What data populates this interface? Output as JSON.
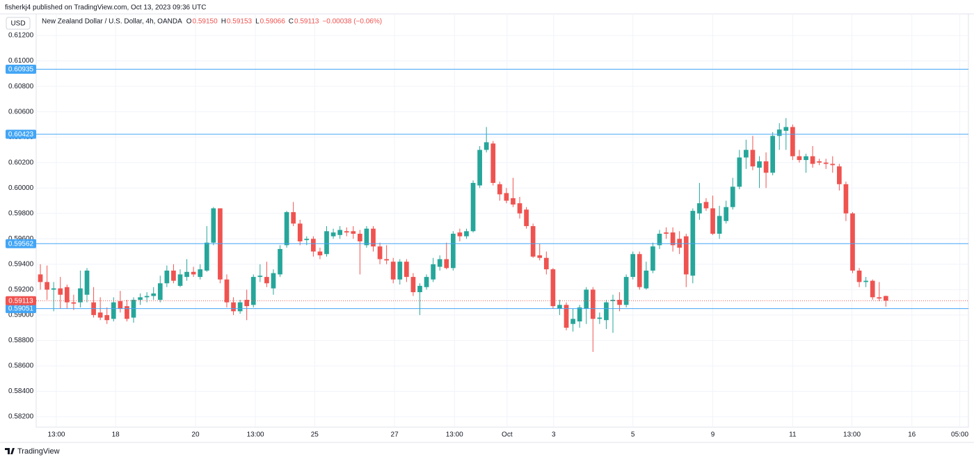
{
  "header": {
    "publisher": "fisherkj4 published on TradingView.com, Oct 13, 2023 09:36 UTC"
  },
  "footer": {
    "brand": "TradingView"
  },
  "chart_data": {
    "type": "candlestick",
    "currency": "USD",
    "symbol": "New Zealand Dollar / U.S. Dollar, 4h, OANDA",
    "ohlc": {
      "o_key": "O",
      "o": "0.59150",
      "h_key": "H",
      "h": "0.59153",
      "l_key": "L",
      "l": "0.59066",
      "c_key": "C",
      "c": "0.59113",
      "change": "−0.00038 (−0.06%)"
    },
    "up_color": "#26a69a",
    "down_color": "#ef5350",
    "ylim": [
      0.58118,
      0.6137
    ],
    "yticks": [
      {
        "value": 0.582,
        "label": "0.58200"
      },
      {
        "value": 0.584,
        "label": "0.58400"
      },
      {
        "value": 0.586,
        "label": "0.58600"
      },
      {
        "value": 0.588,
        "label": "0.58800"
      },
      {
        "value": 0.59,
        "label": "0.59000"
      },
      {
        "value": 0.592,
        "label": "0.59200"
      },
      {
        "value": 0.594,
        "label": "0.59400"
      },
      {
        "value": 0.596,
        "label": "0.59600"
      },
      {
        "value": 0.598,
        "label": "0.59800"
      },
      {
        "value": 0.6,
        "label": "0.60000"
      },
      {
        "value": 0.602,
        "label": "0.60200"
      },
      {
        "value": 0.604,
        "label": "0.60400"
      },
      {
        "value": 0.606,
        "label": "0.60600"
      },
      {
        "value": 0.608,
        "label": "0.60800"
      },
      {
        "value": 0.61,
        "label": "0.61000"
      },
      {
        "value": 0.612,
        "label": "0.61200"
      }
    ],
    "xlim": [
      -0.63,
      139.4
    ],
    "xticks": [
      {
        "value": 2.4,
        "label": "13:00"
      },
      {
        "value": 11.3,
        "label": "18"
      },
      {
        "value": 23.3,
        "label": "20"
      },
      {
        "value": 32.3,
        "label": "13:00"
      },
      {
        "value": 41.2,
        "label": "25"
      },
      {
        "value": 53.2,
        "label": "27"
      },
      {
        "value": 62.2,
        "label": "13:00"
      },
      {
        "value": 70.1,
        "label": "Oct"
      },
      {
        "value": 77.1,
        "label": "3"
      },
      {
        "value": 89.0,
        "label": "5"
      },
      {
        "value": 101.0,
        "label": "9"
      },
      {
        "value": 113.0,
        "label": "11"
      },
      {
        "value": 121.9,
        "label": "13:00"
      },
      {
        "value": 130.9,
        "label": "16"
      },
      {
        "value": 138.1,
        "label": "05:00"
      }
    ],
    "grid": true,
    "levels": {
      "color": "#42a5f5",
      "values": [
        0.60935,
        0.60423,
        0.59562,
        0.59051
      ]
    },
    "last_price": {
      "color": "#ef5350",
      "value": 0.59113
    },
    "candles": [
      {
        "open": 0.5932,
        "high": 0.594,
        "low": 0.592,
        "close": 0.5926
      },
      {
        "open": 0.5926,
        "high": 0.5939,
        "low": 0.5912,
        "close": 0.592
      },
      {
        "open": 0.592,
        "high": 0.5926,
        "low": 0.5903,
        "close": 0.5921
      },
      {
        "open": 0.5921,
        "high": 0.593,
        "low": 0.5905,
        "close": 0.5916
      },
      {
        "open": 0.5922,
        "high": 0.5924,
        "low": 0.5905,
        "close": 0.591
      },
      {
        "open": 0.591,
        "high": 0.5916,
        "low": 0.5904,
        "close": 0.5909
      },
      {
        "open": 0.591,
        "high": 0.5935,
        "low": 0.5906,
        "close": 0.5921
      },
      {
        "open": 0.5916,
        "high": 0.5937,
        "low": 0.591,
        "close": 0.5935
      },
      {
        "open": 0.591,
        "high": 0.5922,
        "low": 0.5898,
        "close": 0.59
      },
      {
        "open": 0.5902,
        "high": 0.5914,
        "low": 0.5896,
        "close": 0.5898
      },
      {
        "open": 0.59,
        "high": 0.5906,
        "low": 0.5893,
        "close": 0.5896
      },
      {
        "open": 0.5897,
        "high": 0.5914,
        "low": 0.5895,
        "close": 0.591
      },
      {
        "open": 0.5911,
        "high": 0.5919,
        "low": 0.5902,
        "close": 0.5905
      },
      {
        "open": 0.5907,
        "high": 0.5912,
        "low": 0.5895,
        "close": 0.5897
      },
      {
        "open": 0.5898,
        "high": 0.5914,
        "low": 0.5894,
        "close": 0.5912
      },
      {
        "open": 0.5912,
        "high": 0.5917,
        "low": 0.5908,
        "close": 0.5914
      },
      {
        "open": 0.5914,
        "high": 0.5918,
        "low": 0.591,
        "close": 0.5915
      },
      {
        "open": 0.5915,
        "high": 0.5922,
        "low": 0.5912,
        "close": 0.5917
      },
      {
        "open": 0.5912,
        "high": 0.5931,
        "low": 0.591,
        "close": 0.5925
      },
      {
        "open": 0.5925,
        "high": 0.5939,
        "low": 0.5922,
        "close": 0.5935
      },
      {
        "open": 0.5935,
        "high": 0.594,
        "low": 0.5925,
        "close": 0.5927
      },
      {
        "open": 0.5923,
        "high": 0.5936,
        "low": 0.5922,
        "close": 0.5932
      },
      {
        "open": 0.593,
        "high": 0.5944,
        "low": 0.5927,
        "close": 0.5934
      },
      {
        "open": 0.5934,
        "high": 0.5938,
        "low": 0.593,
        "close": 0.5932
      },
      {
        "open": 0.593,
        "high": 0.594,
        "low": 0.5928,
        "close": 0.5936
      },
      {
        "open": 0.5935,
        "high": 0.597,
        "low": 0.5934,
        "close": 0.5957
      },
      {
        "open": 0.5957,
        "high": 0.5985,
        "low": 0.5955,
        "close": 0.5984
      },
      {
        "open": 0.5984,
        "high": 0.5984,
        "low": 0.5925,
        "close": 0.5928
      },
      {
        "open": 0.5928,
        "high": 0.5932,
        "low": 0.5906,
        "close": 0.591
      },
      {
        "open": 0.591,
        "high": 0.5914,
        "low": 0.59,
        "close": 0.5903
      },
      {
        "open": 0.5903,
        "high": 0.5912,
        "low": 0.5901,
        "close": 0.591
      },
      {
        "open": 0.5912,
        "high": 0.592,
        "low": 0.5896,
        "close": 0.5907
      },
      {
        "open": 0.5908,
        "high": 0.5932,
        "low": 0.5906,
        "close": 0.593
      },
      {
        "open": 0.593,
        "high": 0.594,
        "low": 0.5926,
        "close": 0.5931
      },
      {
        "open": 0.593,
        "high": 0.5942,
        "low": 0.5922,
        "close": 0.5925
      },
      {
        "open": 0.5921,
        "high": 0.5936,
        "low": 0.5916,
        "close": 0.5933
      },
      {
        "open": 0.5932,
        "high": 0.5955,
        "low": 0.593,
        "close": 0.5952
      },
      {
        "open": 0.5955,
        "high": 0.5982,
        "low": 0.5953,
        "close": 0.5981
      },
      {
        "open": 0.5981,
        "high": 0.5989,
        "low": 0.597,
        "close": 0.5972
      },
      {
        "open": 0.5972,
        "high": 0.5975,
        "low": 0.5955,
        "close": 0.5958
      },
      {
        "open": 0.5959,
        "high": 0.5962,
        "low": 0.5955,
        "close": 0.596
      },
      {
        "open": 0.596,
        "high": 0.5962,
        "low": 0.5946,
        "close": 0.595
      },
      {
        "open": 0.595,
        "high": 0.5953,
        "low": 0.5944,
        "close": 0.5947
      },
      {
        "open": 0.5948,
        "high": 0.597,
        "low": 0.5946,
        "close": 0.5966
      },
      {
        "open": 0.5962,
        "high": 0.5968,
        "low": 0.596,
        "close": 0.5965
      },
      {
        "open": 0.5963,
        "high": 0.597,
        "low": 0.596,
        "close": 0.5967
      },
      {
        "open": 0.5966,
        "high": 0.5969,
        "low": 0.5962,
        "close": 0.5965
      },
      {
        "open": 0.5966,
        "high": 0.597,
        "low": 0.596,
        "close": 0.5964
      },
      {
        "open": 0.5964,
        "high": 0.5967,
        "low": 0.5932,
        "close": 0.5958
      },
      {
        "open": 0.5955,
        "high": 0.597,
        "low": 0.5953,
        "close": 0.5968
      },
      {
        "open": 0.5968,
        "high": 0.597,
        "low": 0.595,
        "close": 0.5954
      },
      {
        "open": 0.5954,
        "high": 0.5957,
        "low": 0.594,
        "close": 0.5944
      },
      {
        "open": 0.5944,
        "high": 0.5955,
        "low": 0.594,
        "close": 0.5943
      },
      {
        "open": 0.5942,
        "high": 0.5945,
        "low": 0.5925,
        "close": 0.5928
      },
      {
        "open": 0.5928,
        "high": 0.5944,
        "low": 0.5924,
        "close": 0.5942
      },
      {
        "open": 0.5942,
        "high": 0.5944,
        "low": 0.5926,
        "close": 0.593
      },
      {
        "open": 0.593,
        "high": 0.5933,
        "low": 0.5915,
        "close": 0.5918
      },
      {
        "open": 0.5918,
        "high": 0.5925,
        "low": 0.59,
        "close": 0.5923
      },
      {
        "open": 0.5922,
        "high": 0.5932,
        "low": 0.592,
        "close": 0.593
      },
      {
        "open": 0.5928,
        "high": 0.5945,
        "low": 0.5926,
        "close": 0.594
      },
      {
        "open": 0.5938,
        "high": 0.5947,
        "low": 0.5935,
        "close": 0.5944
      },
      {
        "open": 0.5944,
        "high": 0.5957,
        "low": 0.5936,
        "close": 0.5937
      },
      {
        "open": 0.5937,
        "high": 0.5966,
        "low": 0.5935,
        "close": 0.5964
      },
      {
        "open": 0.5965,
        "high": 0.5968,
        "low": 0.5958,
        "close": 0.5962
      },
      {
        "open": 0.5962,
        "high": 0.5968,
        "low": 0.596,
        "close": 0.5966
      },
      {
        "open": 0.5966,
        "high": 0.6006,
        "low": 0.5965,
        "close": 0.6004
      },
      {
        "open": 0.6002,
        "high": 0.6033,
        "low": 0.6,
        "close": 0.603
      },
      {
        "open": 0.603,
        "high": 0.6048,
        "low": 0.6028,
        "close": 0.6036
      },
      {
        "open": 0.6035,
        "high": 0.6037,
        "low": 0.6002,
        "close": 0.6004
      },
      {
        "open": 0.6003,
        "high": 0.6005,
        "low": 0.599,
        "close": 0.5995
      },
      {
        "open": 0.5996,
        "high": 0.6,
        "low": 0.5988,
        "close": 0.599
      },
      {
        "open": 0.5992,
        "high": 0.6008,
        "low": 0.5985,
        "close": 0.5987
      },
      {
        "open": 0.5988,
        "high": 0.5993,
        "low": 0.5976,
        "close": 0.598
      },
      {
        "open": 0.5983,
        "high": 0.5985,
        "low": 0.5968,
        "close": 0.597
      },
      {
        "open": 0.597,
        "high": 0.5972,
        "low": 0.5945,
        "close": 0.5946
      },
      {
        "open": 0.5947,
        "high": 0.5956,
        "low": 0.5943,
        "close": 0.5945
      },
      {
        "open": 0.5945,
        "high": 0.595,
        "low": 0.5932,
        "close": 0.5936
      },
      {
        "open": 0.5936,
        "high": 0.5937,
        "low": 0.5905,
        "close": 0.5907
      },
      {
        "open": 0.5905,
        "high": 0.5912,
        "low": 0.59,
        "close": 0.5908
      },
      {
        "open": 0.5908,
        "high": 0.591,
        "low": 0.5888,
        "close": 0.589
      },
      {
        "open": 0.5893,
        "high": 0.5905,
        "low": 0.5887,
        "close": 0.5897
      },
      {
        "open": 0.5895,
        "high": 0.5908,
        "low": 0.589,
        "close": 0.5906
      },
      {
        "open": 0.5905,
        "high": 0.5922,
        "low": 0.5893,
        "close": 0.592
      },
      {
        "open": 0.592,
        "high": 0.5922,
        "low": 0.5871,
        "close": 0.5897
      },
      {
        "open": 0.5897,
        "high": 0.5902,
        "low": 0.5893,
        "close": 0.5898
      },
      {
        "open": 0.5896,
        "high": 0.5912,
        "low": 0.5889,
        "close": 0.591
      },
      {
        "open": 0.5911,
        "high": 0.5916,
        "low": 0.5886,
        "close": 0.5912
      },
      {
        "open": 0.5912,
        "high": 0.5918,
        "low": 0.5903,
        "close": 0.5908
      },
      {
        "open": 0.5908,
        "high": 0.5932,
        "low": 0.5906,
        "close": 0.593
      },
      {
        "open": 0.593,
        "high": 0.595,
        "low": 0.5928,
        "close": 0.5948
      },
      {
        "open": 0.5948,
        "high": 0.595,
        "low": 0.592,
        "close": 0.5922
      },
      {
        "open": 0.5921,
        "high": 0.5942,
        "low": 0.592,
        "close": 0.5935
      },
      {
        "open": 0.5935,
        "high": 0.5957,
        "low": 0.5933,
        "close": 0.5954
      },
      {
        "open": 0.5955,
        "high": 0.5967,
        "low": 0.5952,
        "close": 0.5964
      },
      {
        "open": 0.5965,
        "high": 0.5969,
        "low": 0.596,
        "close": 0.5964
      },
      {
        "open": 0.5965,
        "high": 0.5969,
        "low": 0.595,
        "close": 0.5955
      },
      {
        "open": 0.596,
        "high": 0.5966,
        "low": 0.5948,
        "close": 0.5953
      },
      {
        "open": 0.5962,
        "high": 0.5964,
        "low": 0.5922,
        "close": 0.5932
      },
      {
        "open": 0.5931,
        "high": 0.5984,
        "low": 0.5925,
        "close": 0.5982
      },
      {
        "open": 0.598,
        "high": 0.6004,
        "low": 0.5975,
        "close": 0.5988
      },
      {
        "open": 0.5989,
        "high": 0.5992,
        "low": 0.5982,
        "close": 0.5984
      },
      {
        "open": 0.5984,
        "high": 0.5994,
        "low": 0.5963,
        "close": 0.5964
      },
      {
        "open": 0.5964,
        "high": 0.5986,
        "low": 0.596,
        "close": 0.5978
      },
      {
        "open": 0.5974,
        "high": 0.599,
        "low": 0.5972,
        "close": 0.5985
      },
      {
        "open": 0.5985,
        "high": 0.6008,
        "low": 0.5983,
        "close": 0.6001
      },
      {
        "open": 0.6001,
        "high": 0.603,
        "low": 0.5999,
        "close": 0.6024
      },
      {
        "open": 0.6024,
        "high": 0.6038,
        "low": 0.6015,
        "close": 0.603
      },
      {
        "open": 0.603,
        "high": 0.6041,
        "low": 0.6014,
        "close": 0.6017
      },
      {
        "open": 0.6016,
        "high": 0.6025,
        "low": 0.6,
        "close": 0.6021
      },
      {
        "open": 0.6021,
        "high": 0.6028,
        "low": 0.6,
        "close": 0.6012
      },
      {
        "open": 0.6012,
        "high": 0.6044,
        "low": 0.601,
        "close": 0.6041
      },
      {
        "open": 0.6041,
        "high": 0.6051,
        "low": 0.603,
        "close": 0.6046
      },
      {
        "open": 0.6045,
        "high": 0.6055,
        "low": 0.603,
        "close": 0.6048
      },
      {
        "open": 0.6048,
        "high": 0.605,
        "low": 0.6022,
        "close": 0.6025
      },
      {
        "open": 0.6025,
        "high": 0.603,
        "low": 0.602,
        "close": 0.6022
      },
      {
        "open": 0.6022,
        "high": 0.6027,
        "low": 0.6012,
        "close": 0.6025
      },
      {
        "open": 0.6025,
        "high": 0.6033,
        "low": 0.6016,
        "close": 0.6019
      },
      {
        "open": 0.6021,
        "high": 0.6023,
        "low": 0.6018,
        "close": 0.602
      },
      {
        "open": 0.602,
        "high": 0.6023,
        "low": 0.6015,
        "close": 0.6019
      },
      {
        "open": 0.6019,
        "high": 0.6025,
        "low": 0.6012,
        "close": 0.6018
      },
      {
        "open": 0.6017,
        "high": 0.6019,
        "low": 0.5998,
        "close": 0.6003
      },
      {
        "open": 0.6003,
        "high": 0.6005,
        "low": 0.5974,
        "close": 0.598
      },
      {
        "open": 0.598,
        "high": 0.5981,
        "low": 0.5933,
        "close": 0.5935
      },
      {
        "open": 0.5935,
        "high": 0.5937,
        "low": 0.5922,
        "close": 0.5926
      },
      {
        "open": 0.5926,
        "high": 0.593,
        "low": 0.5922,
        "close": 0.5927
      },
      {
        "open": 0.5927,
        "high": 0.5928,
        "low": 0.5912,
        "close": 0.5914
      },
      {
        "open": 0.5914,
        "high": 0.5926,
        "low": 0.5911,
        "close": 0.5913
      },
      {
        "open": 0.5915,
        "high": 0.59153,
        "low": 0.59066,
        "close": 0.59113
      }
    ]
  }
}
